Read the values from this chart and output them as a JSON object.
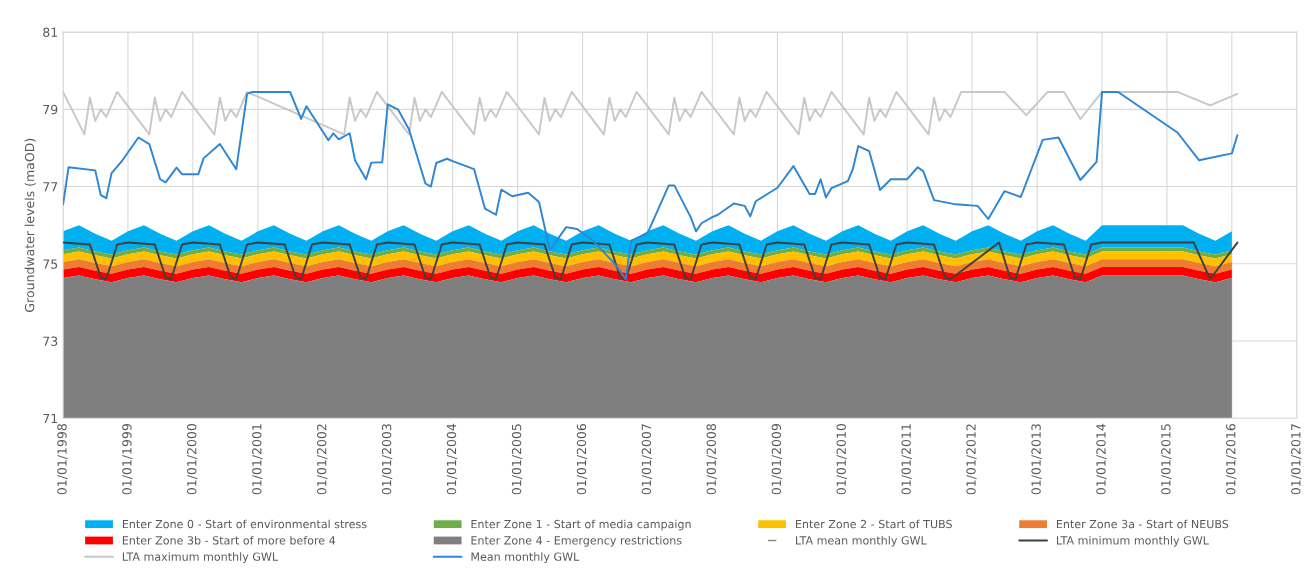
{
  "chart_data": {
    "type": "area",
    "ylabel": "Groundwater levels (maOD)",
    "x": [
      "1998-01",
      "1998-04",
      "1998-07",
      "1998-10",
      "1999-01",
      "1999-04",
      "1999-07",
      "1999-10",
      "2000-01",
      "2000-04",
      "2000-07",
      "2000-10",
      "2001-01",
      "2001-04",
      "2001-07",
      "2001-10",
      "2002-01",
      "2002-04",
      "2002-07",
      "2002-10",
      "2003-01",
      "2003-04",
      "2003-07",
      "2003-10",
      "2004-01",
      "2004-04",
      "2004-07",
      "2004-10",
      "2005-01",
      "2005-04",
      "2005-07",
      "2005-10",
      "2006-01",
      "2006-04",
      "2006-07",
      "2006-10",
      "2007-01",
      "2007-04",
      "2007-07",
      "2007-10",
      "2008-01",
      "2008-04",
      "2008-07",
      "2008-10",
      "2009-01",
      "2009-04",
      "2009-07",
      "2009-10",
      "2010-01",
      "2010-04",
      "2010-07",
      "2010-10",
      "2011-01",
      "2011-04",
      "2011-07",
      "2011-10",
      "2012-01",
      "2012-04",
      "2012-07",
      "2012-10",
      "2013-01",
      "2013-04",
      "2013-07",
      "2013-10",
      "2014-01",
      "2014-04",
      "2014-07",
      "2014-10",
      "2015-01",
      "2015-04",
      "2015-07",
      "2015-10",
      "2016-01"
    ],
    "series": [
      {
        "name": "Enter Zone 0 - Start of environmental stress",
        "color": "#00b0f0",
        "values": [
          75.84,
          76.0,
          75.78,
          75.6,
          75.84,
          76.0,
          75.78,
          75.6,
          75.84,
          76.0,
          75.78,
          75.6,
          75.84,
          76.0,
          75.78,
          75.6,
          75.84,
          76.0,
          75.78,
          75.6,
          75.84,
          76.0,
          75.78,
          75.6,
          75.84,
          76.0,
          75.78,
          75.6,
          75.84,
          76.0,
          75.78,
          75.6,
          75.84,
          76.0,
          75.78,
          75.6,
          75.84,
          76.0,
          75.78,
          75.6,
          75.84,
          76.0,
          75.78,
          75.6,
          75.84,
          76.0,
          75.78,
          75.6,
          75.84,
          76.0,
          75.78,
          75.6,
          75.84,
          76.0,
          75.78,
          75.6,
          75.84,
          76.0,
          75.78,
          75.6,
          75.84,
          76.0,
          75.78,
          75.6,
          76.0,
          76.0,
          76.0,
          76.0,
          76.0,
          76.0,
          75.78,
          75.6,
          75.84
        ]
      },
      {
        "name": "Enter Zone 1 - Start of media campaign",
        "color": "#70ad47",
        "values": [
          75.35,
          75.42,
          75.32,
          75.24,
          75.35,
          75.42,
          75.32,
          75.24,
          75.35,
          75.42,
          75.32,
          75.24,
          75.35,
          75.42,
          75.32,
          75.24,
          75.35,
          75.42,
          75.32,
          75.24,
          75.35,
          75.42,
          75.32,
          75.24,
          75.35,
          75.42,
          75.32,
          75.24,
          75.35,
          75.42,
          75.32,
          75.24,
          75.35,
          75.42,
          75.32,
          75.24,
          75.35,
          75.42,
          75.32,
          75.24,
          75.35,
          75.42,
          75.32,
          75.24,
          75.35,
          75.42,
          75.32,
          75.24,
          75.35,
          75.42,
          75.32,
          75.24,
          75.35,
          75.42,
          75.32,
          75.24,
          75.35,
          75.42,
          75.32,
          75.24,
          75.35,
          75.42,
          75.32,
          75.24,
          75.42,
          75.42,
          75.42,
          75.42,
          75.42,
          75.42,
          75.32,
          75.24,
          75.35
        ]
      },
      {
        "name": "Enter Zone 2 - Start of TUBS",
        "color": "#ffc000",
        "values": [
          75.25,
          75.32,
          75.22,
          75.14,
          75.25,
          75.32,
          75.22,
          75.14,
          75.25,
          75.32,
          75.22,
          75.14,
          75.25,
          75.32,
          75.22,
          75.14,
          75.25,
          75.32,
          75.22,
          75.14,
          75.25,
          75.32,
          75.22,
          75.14,
          75.25,
          75.32,
          75.22,
          75.14,
          75.25,
          75.32,
          75.22,
          75.14,
          75.25,
          75.32,
          75.22,
          75.14,
          75.25,
          75.32,
          75.22,
          75.14,
          75.25,
          75.32,
          75.22,
          75.14,
          75.25,
          75.32,
          75.22,
          75.14,
          75.25,
          75.32,
          75.22,
          75.14,
          75.25,
          75.32,
          75.22,
          75.14,
          75.25,
          75.32,
          75.22,
          75.14,
          75.25,
          75.32,
          75.22,
          75.14,
          75.32,
          75.32,
          75.32,
          75.32,
          75.32,
          75.32,
          75.22,
          75.14,
          75.25
        ]
      },
      {
        "name": "Enter Zone 3a - Start of NEUBS",
        "color": "#ed7d31",
        "values": [
          75.05,
          75.12,
          75.02,
          74.94,
          75.05,
          75.12,
          75.02,
          74.94,
          75.05,
          75.12,
          75.02,
          74.94,
          75.05,
          75.12,
          75.02,
          74.94,
          75.05,
          75.12,
          75.02,
          74.94,
          75.05,
          75.12,
          75.02,
          74.94,
          75.05,
          75.12,
          75.02,
          74.94,
          75.05,
          75.12,
          75.02,
          74.94,
          75.05,
          75.12,
          75.02,
          74.94,
          75.05,
          75.12,
          75.02,
          74.94,
          75.05,
          75.12,
          75.02,
          74.94,
          75.05,
          75.12,
          75.02,
          74.94,
          75.05,
          75.12,
          75.02,
          74.94,
          75.05,
          75.12,
          75.02,
          74.94,
          75.05,
          75.12,
          75.02,
          74.94,
          75.05,
          75.12,
          75.02,
          74.94,
          75.12,
          75.12,
          75.12,
          75.12,
          75.12,
          75.12,
          75.02,
          74.94,
          75.05
        ]
      },
      {
        "name": "Enter Zone 3b - Start of more before 4",
        "color": "#ff0000",
        "values": [
          74.85,
          74.92,
          74.82,
          74.74,
          74.85,
          74.92,
          74.82,
          74.74,
          74.85,
          74.92,
          74.82,
          74.74,
          74.85,
          74.92,
          74.82,
          74.74,
          74.85,
          74.92,
          74.82,
          74.74,
          74.85,
          74.92,
          74.82,
          74.74,
          74.85,
          74.92,
          74.82,
          74.74,
          74.85,
          74.92,
          74.82,
          74.74,
          74.85,
          74.92,
          74.82,
          74.74,
          74.85,
          74.92,
          74.82,
          74.74,
          74.85,
          74.92,
          74.82,
          74.74,
          74.85,
          74.92,
          74.82,
          74.74,
          74.85,
          74.92,
          74.82,
          74.74,
          74.85,
          74.92,
          74.82,
          74.74,
          74.85,
          74.92,
          74.82,
          74.74,
          74.85,
          74.92,
          74.82,
          74.74,
          74.92,
          74.92,
          74.92,
          74.92,
          74.92,
          74.92,
          74.82,
          74.74,
          74.85
        ]
      },
      {
        "name": "Enter Zone 4 - Emergency restrictions",
        "color": "#7f7f7f",
        "values": [
          74.63,
          74.7,
          74.6,
          74.52,
          74.63,
          74.7,
          74.6,
          74.52,
          74.63,
          74.7,
          74.6,
          74.52,
          74.63,
          74.7,
          74.6,
          74.52,
          74.63,
          74.7,
          74.6,
          74.52,
          74.63,
          74.7,
          74.6,
          74.52,
          74.63,
          74.7,
          74.6,
          74.52,
          74.63,
          74.7,
          74.6,
          74.52,
          74.63,
          74.7,
          74.6,
          74.52,
          74.63,
          74.7,
          74.6,
          74.52,
          74.63,
          74.7,
          74.6,
          74.52,
          74.63,
          74.7,
          74.6,
          74.52,
          74.63,
          74.7,
          74.6,
          74.52,
          74.63,
          74.7,
          74.6,
          74.52,
          74.63,
          74.7,
          74.6,
          74.52,
          74.63,
          74.7,
          74.6,
          74.52,
          74.7,
          74.7,
          74.7,
          74.7,
          74.7,
          74.7,
          74.6,
          74.52,
          74.63
        ]
      },
      {
        "name": "LTA mean monthly GWL",
        "type": "line",
        "color": "#7f7f7f",
        "values": [
          null,
          null,
          null,
          null,
          null,
          null,
          null,
          null,
          null,
          null,
          null,
          null,
          null,
          null,
          null,
          null,
          null,
          null,
          null,
          null,
          null,
          null,
          null,
          null,
          null,
          null,
          null,
          null,
          null,
          null,
          null,
          null,
          null,
          null,
          null,
          null,
          null,
          null,
          null,
          null,
          null,
          null,
          null,
          null,
          null,
          null,
          null,
          null,
          null,
          null,
          null,
          null,
          null,
          null,
          null,
          null,
          null,
          null,
          null,
          null,
          null,
          null,
          null,
          null,
          null,
          null,
          null,
          null,
          null,
          null,
          null,
          null,
          null
        ]
      },
      {
        "name": "LTA minimum monthly GWL",
        "type": "line",
        "color": "#404040",
        "x": [
          "1998-01",
          "1998-06",
          "1998-08",
          "1998-09",
          "1998-11",
          "1999-01",
          "1999-06",
          "1999-08",
          "1999-09",
          "1999-11",
          "2000-01",
          "2000-06",
          "2000-08",
          "2000-09",
          "2000-11",
          "2001-01",
          "2001-06",
          "2001-08",
          "2001-09",
          "2001-11",
          "2002-01",
          "2002-06",
          "2002-08",
          "2002-09",
          "2002-11",
          "2003-01",
          "2003-06",
          "2003-08",
          "2003-09",
          "2003-11",
          "2004-01",
          "2004-06",
          "2004-08",
          "2004-09",
          "2004-11",
          "2005-01",
          "2005-06",
          "2005-08",
          "2005-09",
          "2005-11",
          "2006-01",
          "2006-06",
          "2006-08",
          "2006-09",
          "2006-11",
          "2007-01",
          "2007-06",
          "2007-08",
          "2007-09",
          "2007-11",
          "2008-01",
          "2008-06",
          "2008-08",
          "2008-09",
          "2008-11",
          "2009-01",
          "2009-06",
          "2009-08",
          "2009-09",
          "2009-11",
          "2010-01",
          "2010-06",
          "2010-08",
          "2010-09",
          "2010-11",
          "2011-01",
          "2011-06",
          "2011-08",
          "2011-09",
          "2012-06",
          "2012-08",
          "2012-09",
          "2012-11",
          "2013-01",
          "2013-06",
          "2013-08",
          "2013-09",
          "2013-11",
          "2014-01",
          "2015-06",
          "2015-09",
          "2016-02"
        ],
        "values": [
          75.55,
          75.5,
          74.65,
          74.6,
          75.5,
          75.55,
          75.5,
          74.65,
          74.6,
          75.5,
          75.55,
          75.5,
          74.65,
          74.6,
          75.5,
          75.55,
          75.5,
          74.65,
          74.6,
          75.5,
          75.55,
          75.5,
          74.65,
          74.6,
          75.5,
          75.55,
          75.5,
          74.65,
          74.6,
          75.5,
          75.55,
          75.5,
          74.65,
          74.6,
          75.5,
          75.55,
          75.5,
          74.65,
          74.6,
          75.5,
          75.55,
          75.5,
          74.65,
          74.6,
          75.5,
          75.55,
          75.5,
          74.65,
          74.6,
          75.5,
          75.55,
          75.5,
          74.65,
          74.6,
          75.5,
          75.55,
          75.5,
          74.65,
          74.6,
          75.5,
          75.55,
          75.5,
          74.65,
          74.6,
          75.5,
          75.55,
          75.5,
          74.65,
          74.6,
          75.55,
          74.65,
          74.6,
          75.5,
          75.55,
          75.5,
          74.65,
          74.6,
          75.5,
          75.55,
          75.55,
          74.6,
          75.55
        ]
      },
      {
        "name": "LTA maximum monthly GWL",
        "type": "line",
        "color": "#c8c8c8",
        "x": [
          "1998-01",
          "1998-05",
          "1998-06",
          "1998-07",
          "1998-08",
          "1998-09",
          "1998-11",
          "1999-05",
          "1999-06",
          "1999-07",
          "1999-08",
          "1999-09",
          "1999-11",
          "2000-05",
          "2000-06",
          "2000-07",
          "2000-08",
          "2000-09",
          "2000-11",
          "2002-05",
          "2002-06",
          "2002-07",
          "2002-08",
          "2002-09",
          "2002-11",
          "2003-05",
          "2003-06",
          "2003-07",
          "2003-08",
          "2003-09",
          "2003-11",
          "2004-05",
          "2004-06",
          "2004-07",
          "2004-08",
          "2004-09",
          "2004-11",
          "2005-05",
          "2005-06",
          "2005-07",
          "2005-08",
          "2005-09",
          "2005-11",
          "2006-05",
          "2006-06",
          "2006-07",
          "2006-08",
          "2006-09",
          "2006-11",
          "2007-05",
          "2007-06",
          "2007-07",
          "2007-08",
          "2007-09",
          "2007-11",
          "2008-05",
          "2008-06",
          "2008-07",
          "2008-08",
          "2008-09",
          "2008-11",
          "2009-05",
          "2009-06",
          "2009-07",
          "2009-08",
          "2009-09",
          "2009-11",
          "2010-05",
          "2010-06",
          "2010-07",
          "2010-08",
          "2010-09",
          "2010-11",
          "2011-05",
          "2011-06",
          "2011-07",
          "2011-08",
          "2011-09",
          "2011-11",
          "2012-07",
          "2012-11",
          "2013-03",
          "2013-06",
          "2013-09",
          "2014-01",
          "2015-03",
          "2015-09",
          "2016-02"
        ],
        "values": [
          79.45,
          78.35,
          79.3,
          78.7,
          79.0,
          78.8,
          79.45,
          78.35,
          79.3,
          78.7,
          79.0,
          78.8,
          79.45,
          78.35,
          79.3,
          78.7,
          79.0,
          78.8,
          79.45,
          78.35,
          79.3,
          78.7,
          79.0,
          78.8,
          79.45,
          78.35,
          79.3,
          78.7,
          79.0,
          78.8,
          79.45,
          78.35,
          79.3,
          78.7,
          79.0,
          78.8,
          79.45,
          78.35,
          79.3,
          78.7,
          79.0,
          78.8,
          79.45,
          78.35,
          79.3,
          78.7,
          79.0,
          78.8,
          79.45,
          78.35,
          79.3,
          78.7,
          79.0,
          78.8,
          79.45,
          78.35,
          79.3,
          78.7,
          79.0,
          78.8,
          79.45,
          78.35,
          79.3,
          78.7,
          79.0,
          78.8,
          79.45,
          78.35,
          79.3,
          78.7,
          79.0,
          78.8,
          79.45,
          78.35,
          79.3,
          78.7,
          79.0,
          78.8,
          79.45,
          79.45,
          78.85,
          79.45,
          79.45,
          78.75,
          79.45,
          79.45,
          79.1,
          79.4
        ]
      },
      {
        "name": "Mean monthly GWL",
        "type": "line",
        "color": "#2e86d4",
        "x": [
          "1998-01",
          "1998-02",
          "1998-07",
          "1998-08",
          "1998-09",
          "1998-10",
          "1998-12",
          "1999-03",
          "1999-05",
          "1999-07",
          "1999-08",
          "1999-10",
          "1999-11",
          "2000-02",
          "2000-03",
          "2000-06",
          "2000-09",
          "2000-11",
          "2000-12",
          "2001-07",
          "2001-09",
          "2001-10",
          "2002-02",
          "2002-03",
          "2002-04",
          "2002-06",
          "2002-07",
          "2002-09",
          "2002-10",
          "2002-12",
          "2003-01",
          "2003-03",
          "2003-05",
          "2003-08",
          "2003-09",
          "2003-10",
          "2003-12",
          "2004-01",
          "2004-05",
          "2004-07",
          "2004-09",
          "2004-10",
          "2004-12",
          "2005-03",
          "2005-05",
          "2005-07",
          "2005-10",
          "2005-12",
          "2006-03",
          "2006-07",
          "2006-09",
          "2006-10",
          "2007-01",
          "2007-05",
          "2007-06",
          "2007-09",
          "2007-10",
          "2007-11",
          "2008-01",
          "2008-02",
          "2008-05",
          "2008-07",
          "2008-08",
          "2008-09",
          "2009-01",
          "2009-04",
          "2009-07",
          "2009-08",
          "2009-09",
          "2009-10",
          "2009-11",
          "2010-02",
          "2010-03",
          "2010-04",
          "2010-06",
          "2010-08",
          "2010-10",
          "2011-01",
          "2011-03",
          "2011-04",
          "2011-06",
          "2011-10",
          "2012-02",
          "2012-04",
          "2012-07",
          "2012-10",
          "2013-02",
          "2013-05",
          "2013-09",
          "2013-12",
          "2014-01",
          "2014-04",
          "2015-03",
          "2015-07",
          "2016-01",
          "2016-02"
        ],
        "values": [
          76.54,
          77.5,
          77.42,
          76.78,
          76.7,
          77.35,
          77.68,
          78.27,
          78.1,
          77.19,
          77.11,
          77.49,
          77.32,
          77.32,
          77.73,
          78.1,
          77.45,
          79.4,
          79.45,
          79.45,
          78.75,
          79.08,
          78.2,
          78.38,
          78.22,
          78.38,
          77.68,
          77.19,
          77.62,
          77.63,
          79.13,
          78.99,
          78.48,
          77.08,
          77.0,
          77.61,
          77.72,
          77.66,
          77.45,
          76.43,
          76.27,
          76.92,
          76.75,
          76.84,
          76.6,
          75.35,
          75.95,
          75.9,
          75.6,
          75.0,
          74.6,
          75.6,
          75.79,
          77.03,
          77.03,
          76.21,
          75.84,
          76.05,
          76.21,
          76.27,
          76.56,
          76.5,
          76.23,
          76.62,
          76.97,
          77.53,
          76.81,
          76.81,
          77.19,
          76.72,
          76.96,
          77.14,
          77.45,
          78.05,
          77.92,
          76.91,
          77.19,
          77.19,
          77.5,
          77.4,
          76.65,
          76.54,
          76.5,
          76.16,
          76.88,
          76.73,
          78.21,
          78.27,
          77.17,
          77.64,
          79.45,
          79.45,
          78.4,
          77.68,
          77.86,
          78.33
        ]
      }
    ],
    "ylim": [
      71,
      81
    ],
    "yticks": [
      71,
      73,
      75,
      77,
      79,
      81
    ],
    "xlim": [
      "1998-01-01",
      "2017-01-01"
    ],
    "xticks": [
      {
        "value": "1998-01-01",
        "label": "01/01/1998"
      },
      {
        "value": "1999-01-01",
        "label": "01/01/1999"
      },
      {
        "value": "2000-01-01",
        "label": "01/01/2000"
      },
      {
        "value": "2001-01-01",
        "label": "01/01/2001"
      },
      {
        "value": "2002-01-01",
        "label": "01/01/2002"
      },
      {
        "value": "2003-01-01",
        "label": "01/01/2003"
      },
      {
        "value": "2004-01-01",
        "label": "01/01/2004"
      },
      {
        "value": "2005-01-01",
        "label": "01/01/2005"
      },
      {
        "value": "2006-01-01",
        "label": "01/01/2006"
      },
      {
        "value": "2007-01-01",
        "label": "01/01/2007"
      },
      {
        "value": "2008-01-01",
        "label": "01/01/2008"
      },
      {
        "value": "2009-01-01",
        "label": "01/01/2009"
      },
      {
        "value": "2010-01-01",
        "label": "01/01/2010"
      },
      {
        "value": "2011-01-01",
        "label": "01/01/2011"
      },
      {
        "value": "2012-01-01",
        "label": "01/01/2012"
      },
      {
        "value": "2013-01-01",
        "label": "01/01/2013"
      },
      {
        "value": "2014-01-01",
        "label": "01/01/2014"
      },
      {
        "value": "2015-01-01",
        "label": "01/01/2015"
      },
      {
        "value": "2016-01-01",
        "label": "01/01/2016"
      },
      {
        "value": "2017-01-01",
        "label": "01/01/2017"
      }
    ],
    "grid": true,
    "legend": "bottom",
    "marker": "none",
    "line_style": "solid"
  }
}
